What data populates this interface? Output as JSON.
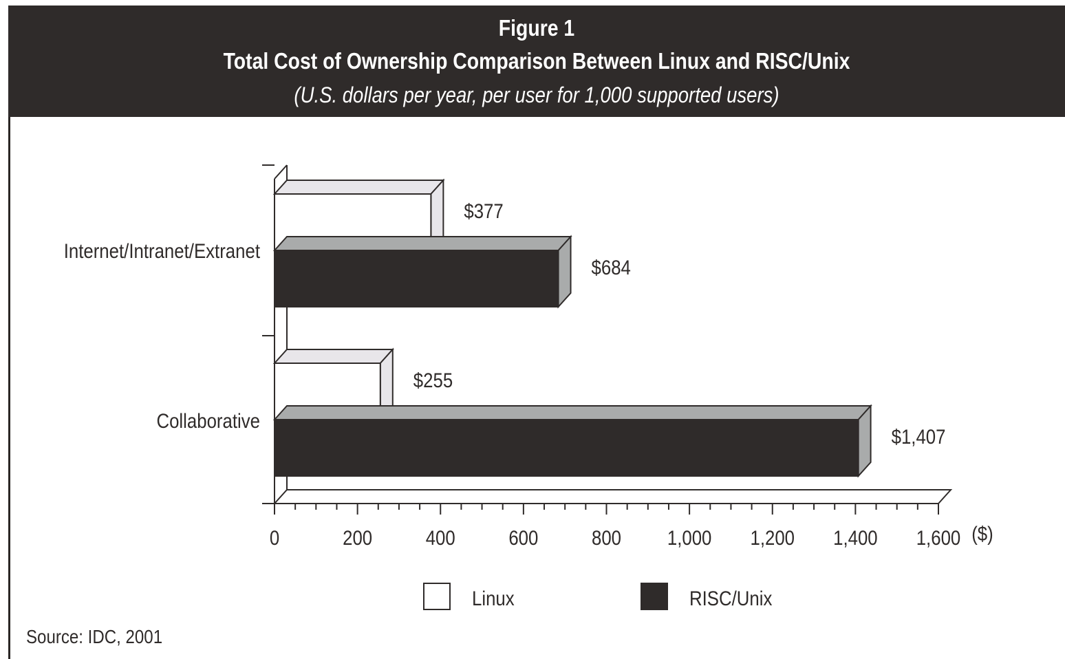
{
  "header": {
    "figure_label": "Figure 1",
    "title": "Total Cost of Ownership Comparison Between Linux and RISC/Unix",
    "subtitle": "(U.S. dollars per year, per user for 1,000 supported users)"
  },
  "source": "Source: IDC, 2001",
  "colors": {
    "header_bg": "#2f2b2a",
    "linux_face": "#ffffff",
    "linux_side": "#e8e6ea",
    "risc_face": "#2f2b2a",
    "risc_side": "#a9abab"
  },
  "chart_data": {
    "type": "bar",
    "orientation": "horizontal",
    "style": "3d",
    "categories": [
      "Internet/Intranet/Extranet",
      "Collaborative"
    ],
    "series": [
      {
        "name": "Linux",
        "values": [
          377,
          255
        ],
        "labels": [
          "$377",
          "$255"
        ]
      },
      {
        "name": "RISC/Unix",
        "values": [
          684,
          1407
        ],
        "labels": [
          "$684",
          "$1,407"
        ]
      }
    ],
    "x_ticks": [
      0,
      200,
      400,
      600,
      800,
      1000,
      1200,
      1400,
      1600
    ],
    "x_tick_labels": [
      "0",
      "200",
      "400",
      "600",
      "800",
      "1,000",
      "1,200",
      "1,400",
      "1,600"
    ],
    "xlabel": "($)",
    "xlim": [
      0,
      1600
    ],
    "legend_position": "bottom",
    "grid": false
  }
}
